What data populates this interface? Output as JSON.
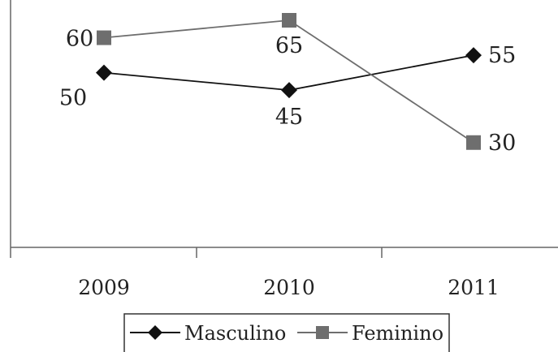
{
  "chart_data": {
    "type": "line",
    "categories": [
      "2009",
      "2010",
      "2011"
    ],
    "series": [
      {
        "name": "Masculino",
        "values": [
          50,
          45,
          55
        ],
        "color": "#111111",
        "marker": "diamond"
      },
      {
        "name": "Feminino",
        "values": [
          60,
          65,
          30
        ],
        "color": "#6e6e6e",
        "marker": "square"
      }
    ],
    "title": "",
    "xlabel": "",
    "ylabel": "",
    "ylim": [
      0,
      70
    ],
    "grid": false,
    "legend_position": "bottom"
  }
}
